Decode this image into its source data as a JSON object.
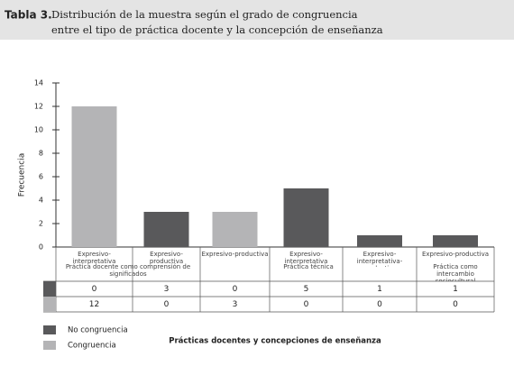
{
  "header": {
    "label": "Tabla 3.",
    "title_lines": [
      "Distribución de la muestra según el grado de congruencia",
      "entre el tipo de práctica docente y la concepción de enseñanza"
    ]
  },
  "chart_data": {
    "type": "bar",
    "stacked": true,
    "y_label": "Frecuencia",
    "x_label": "Prácticas docentes y concepciones de enseñanza",
    "groups": [
      {
        "name": "Práctica docente como comprensión de significados",
        "categories": [
          "Expresivo-interpretativa",
          "Expresivo-productiva"
        ]
      },
      {
        "name": "Práctica técnica",
        "categories": [
          "Expresivo-productiva",
          "Expresivo-interpretativa",
          "Expresivo-interpretativa-productiva"
        ]
      },
      {
        "name": "Práctica como intercambio sociocultural",
        "categories": [
          "Expresivo-productiva"
        ]
      }
    ],
    "series": [
      {
        "name": "No congruencia",
        "color": "#59595b",
        "values": [
          0,
          3,
          0,
          5,
          1,
          1
        ]
      },
      {
        "name": "Congruencia",
        "color": "#b4b4b6",
        "values": [
          12,
          0,
          3,
          0,
          0,
          0
        ]
      }
    ],
    "ylim": [
      0,
      14
    ],
    "yticks": [
      0,
      2,
      4,
      6,
      8,
      10,
      12,
      14
    ]
  }
}
